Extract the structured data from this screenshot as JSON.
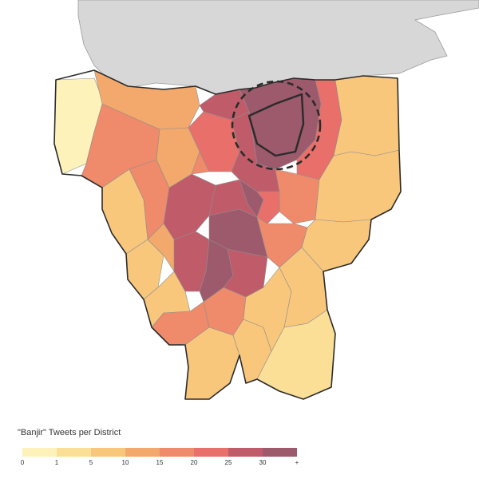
{
  "legend": {
    "title": "\"Banjir\" Tweets per District",
    "bins": [
      {
        "from": "0",
        "to": "1",
        "color": "#fdf2b9"
      },
      {
        "from": "1",
        "to": "5",
        "color": "#fbdf97"
      },
      {
        "from": "5",
        "to": "10",
        "color": "#f8c77c"
      },
      {
        "from": "10",
        "to": "15",
        "color": "#f3a96c"
      },
      {
        "from": "15",
        "to": "20",
        "color": "#ef8a6a"
      },
      {
        "from": "20",
        "to": "25",
        "color": "#e86f6a"
      },
      {
        "from": "25",
        "to": "30",
        "color": "#c05b6a"
      },
      {
        "from": "30",
        "to": "+",
        "color": "#9c5a6c"
      }
    ],
    "tick_labels": [
      "0",
      "1",
      "5",
      "10",
      "15",
      "20",
      "25",
      "30",
      "+"
    ]
  },
  "map": {
    "surrounding_land_color": "#d7d7d7",
    "highlighted_district": "dashed-circle-highlight"
  }
}
